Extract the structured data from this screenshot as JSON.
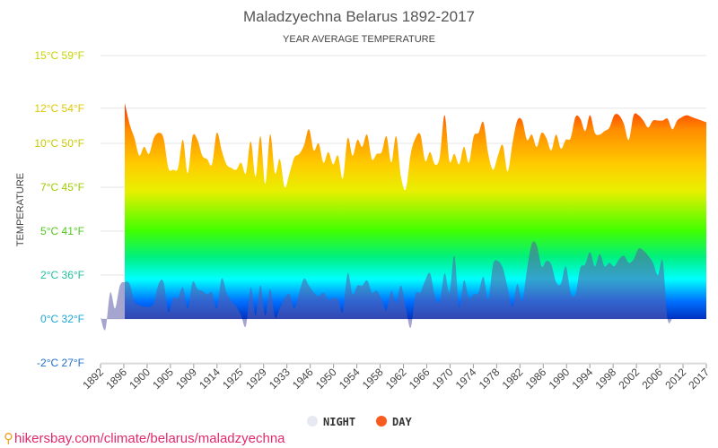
{
  "chart_data": {
    "type": "area",
    "title": "Maladzyechna Belarus 1892-2017",
    "subtitle": "YEAR AVERAGE TEMPERATURE",
    "ylabel": "TEMPERATURE",
    "xlim": [
      1892,
      2017
    ],
    "ylim": [
      -2.5,
      15
    ],
    "y_ticks": [
      {
        "value": 15,
        "label": "15°C 59°F",
        "color": "#c8d400"
      },
      {
        "value": 12,
        "label": "12°C 54°F",
        "color": "#dcc800"
      },
      {
        "value": 10,
        "label": "10°C 50°F",
        "color": "#c8c800"
      },
      {
        "value": 7.5,
        "label": "7°C 45°F",
        "color": "#a0cc00"
      },
      {
        "value": 5,
        "label": "5°C 41°F",
        "color": "#50c820"
      },
      {
        "value": 2.5,
        "label": "2°C 36°F",
        "color": "#20c0a0"
      },
      {
        "value": 0,
        "label": "0°C 32°F",
        "color": "#1aa8d8"
      },
      {
        "value": -2.5,
        "label": "-2°C 27°F",
        "color": "#2070d0"
      }
    ],
    "x_ticks": [
      "1892",
      "1896",
      "1900",
      "1905",
      "1909",
      "1914",
      "1925",
      "1929",
      "1933",
      "1946",
      "1950",
      "1954",
      "1958",
      "1962",
      "1966",
      "1970",
      "1974",
      "1978",
      "1982",
      "1986",
      "1990",
      "1994",
      "1998",
      "2002",
      "2006",
      "2012",
      "2017"
    ],
    "legend_position": "bottom",
    "grid": true,
    "series": [
      {
        "name": "NIGHT",
        "color": "#5b5ba8",
        "x": [
          1892,
          1893,
          1894,
          1895,
          1896,
          1897,
          1898,
          1899,
          1900,
          1901,
          1902,
          1903,
          1904,
          1905,
          1906,
          1907,
          1908,
          1909,
          1910,
          1911,
          1912,
          1913,
          1914,
          1915,
          1916,
          1917,
          1918,
          1919,
          1920,
          1921,
          1922,
          1923,
          1924,
          1925,
          1926,
          1927,
          1928,
          1929,
          1930,
          1931,
          1932,
          1933,
          1934,
          1935,
          1936,
          1937,
          1938,
          1939,
          1940,
          1941,
          1942,
          1943,
          1944,
          1945,
          1946,
          1947,
          1948,
          1949,
          1950,
          1951,
          1952,
          1953,
          1954,
          1955,
          1956,
          1957,
          1958,
          1959,
          1960,
          1961,
          1962,
          1963,
          1964,
          1965,
          1966,
          1967,
          1968,
          1969,
          1970,
          1971,
          1972,
          1973,
          1974,
          1975,
          1976,
          1977,
          1978,
          1979,
          1980,
          1981,
          1982,
          1983,
          1984,
          1985,
          1986,
          1987,
          1988,
          1989,
          1990,
          1991,
          1992,
          1993,
          1994,
          1995,
          1996,
          1997,
          1998,
          1999,
          2000,
          2001,
          2002,
          2003,
          2004,
          2005,
          2006,
          2007,
          2008,
          2009,
          2010,
          2011,
          2012,
          2013,
          2014,
          2015,
          2016,
          2017
        ],
        "values": [
          0.1,
          -0.6,
          1.5,
          0.6,
          1.9,
          2.1,
          2.0,
          1.0,
          0.8,
          0.7,
          0.7,
          0.9,
          2.0,
          2.1,
          0.4,
          1.2,
          1.2,
          1.8,
          0.6,
          2.1,
          1.7,
          1.6,
          1.4,
          1.5,
          0.6,
          2.3,
          1.5,
          1.0,
          0.7,
          0.2,
          -0.4,
          1.8,
          0.2,
          1.9,
          0.2,
          1.7,
          0.1,
          0.6,
          1.2,
          1.4,
          0.6,
          1.5,
          2.3,
          1.9,
          1.5,
          1.3,
          1.5,
          1.1,
          1.2,
          1.1,
          0.4,
          2.6,
          1.4,
          1.9,
          1.9,
          2.2,
          1.5,
          1.6,
          1.1,
          0.5,
          1.6,
          0.9,
          1.9,
          0.6,
          -0.5,
          1.4,
          1.5,
          2.2,
          2.6,
          1.3,
          1.0,
          2.6,
          1.5,
          3.6,
          0.7,
          2.2,
          1.2,
          1.4,
          1.5,
          2.4,
          1.1,
          3.1,
          3.3,
          2.9,
          1.8,
          0.7,
          2.0,
          1.0,
          2.8,
          4.3,
          4.2,
          3.0,
          3.3,
          3.1,
          2.1,
          2.0,
          3.0,
          1.5,
          1.4,
          2.9,
          3.1,
          3.8,
          3.0,
          3.7,
          3.0,
          3.2,
          3.0,
          3.4,
          3.6,
          3.2,
          3.4,
          4.0,
          3.9,
          3.6,
          3.2,
          2.5,
          3.3,
          0.0,
          0.0,
          0.0,
          0.0,
          0.0,
          0.0,
          0.0,
          0.0,
          0.0
        ]
      },
      {
        "name": "DAY",
        "color": "#f95a1e",
        "x": [
          1892,
          1893,
          1894,
          1895,
          1896,
          1897,
          1898,
          1899,
          1900,
          1901,
          1902,
          1903,
          1904,
          1905,
          1906,
          1907,
          1908,
          1909,
          1910,
          1911,
          1912,
          1913,
          1914,
          1915,
          1916,
          1917,
          1918,
          1919,
          1920,
          1921,
          1922,
          1923,
          1924,
          1925,
          1926,
          1927,
          1928,
          1929,
          1930,
          1931,
          1932,
          1933,
          1934,
          1935,
          1936,
          1937,
          1938,
          1939,
          1940,
          1941,
          1942,
          1943,
          1944,
          1945,
          1946,
          1947,
          1948,
          1949,
          1950,
          1951,
          1952,
          1953,
          1954,
          1955,
          1956,
          1957,
          1958,
          1959,
          1960,
          1961,
          1962,
          1963,
          1964,
          1965,
          1966,
          1967,
          1968,
          1969,
          1970,
          1971,
          1972,
          1973,
          1974,
          1975,
          1976,
          1977,
          1978,
          1979,
          1980,
          1981,
          1982,
          1983,
          1984,
          1985,
          1986,
          1987,
          1988,
          1989,
          1990,
          1991,
          1992,
          1993,
          1994,
          1995,
          1996,
          1997,
          1998,
          1999,
          2000,
          2001,
          2002,
          2003,
          2004,
          2005,
          2006,
          2007,
          2008,
          2009,
          2010,
          2011,
          2012,
          2013,
          2014,
          2015,
          2016,
          2017
        ],
        "values": [
          null,
          null,
          null,
          null,
          null,
          12.3,
          11.1,
          10.3,
          9.3,
          9.8,
          9.4,
          10.3,
          10.6,
          10.3,
          8.6,
          8.5,
          8.6,
          10.2,
          8.3,
          10.4,
          10.2,
          9.3,
          9.1,
          8.8,
          10.6,
          9.6,
          8.8,
          8.6,
          8.5,
          8.9,
          8.3,
          10.1,
          8.1,
          10.4,
          7.7,
          10.5,
          8.3,
          9.1,
          7.5,
          8.3,
          9.2,
          9.4,
          9.9,
          10.8,
          9.6,
          10.0,
          8.9,
          9.5,
          8.8,
          9.3,
          8.0,
          10.3,
          9.3,
          10.2,
          9.8,
          10.5,
          9.1,
          9.4,
          9.5,
          10.4,
          8.9,
          10.4,
          8.1,
          7.4,
          9.4,
          10.3,
          10.5,
          9.0,
          9.5,
          8.8,
          9.2,
          11.6,
          9.0,
          9.4,
          8.8,
          9.8,
          8.9,
          10.4,
          10.6,
          11.2,
          9.4,
          8.5,
          9.3,
          9.9,
          8.4,
          10.0,
          11.3,
          11.3,
          10.2,
          10.5,
          9.8,
          10.6,
          10.3,
          9.6,
          10.5,
          9.7,
          10.2,
          10.3,
          11.5,
          11.4,
          10.7,
          11.6,
          10.6,
          10.5,
          10.7,
          10.9,
          11.6,
          11.6,
          11.1,
          10.2,
          11.6,
          11.6,
          11.3,
          10.9,
          11.3,
          11.3,
          11.3,
          11.4,
          10.8,
          11.3,
          11.5,
          11.6,
          11.5,
          11.4,
          11.3,
          11.2
        ]
      }
    ]
  },
  "legend": [
    {
      "label": "NIGHT",
      "color": "#e6e8f2"
    },
    {
      "label": "DAY",
      "color": "#f95a1e"
    }
  ],
  "source_text": "hikersbay.com/climate/belarus/maladzyechna",
  "source_icon": "map-pin-icon"
}
